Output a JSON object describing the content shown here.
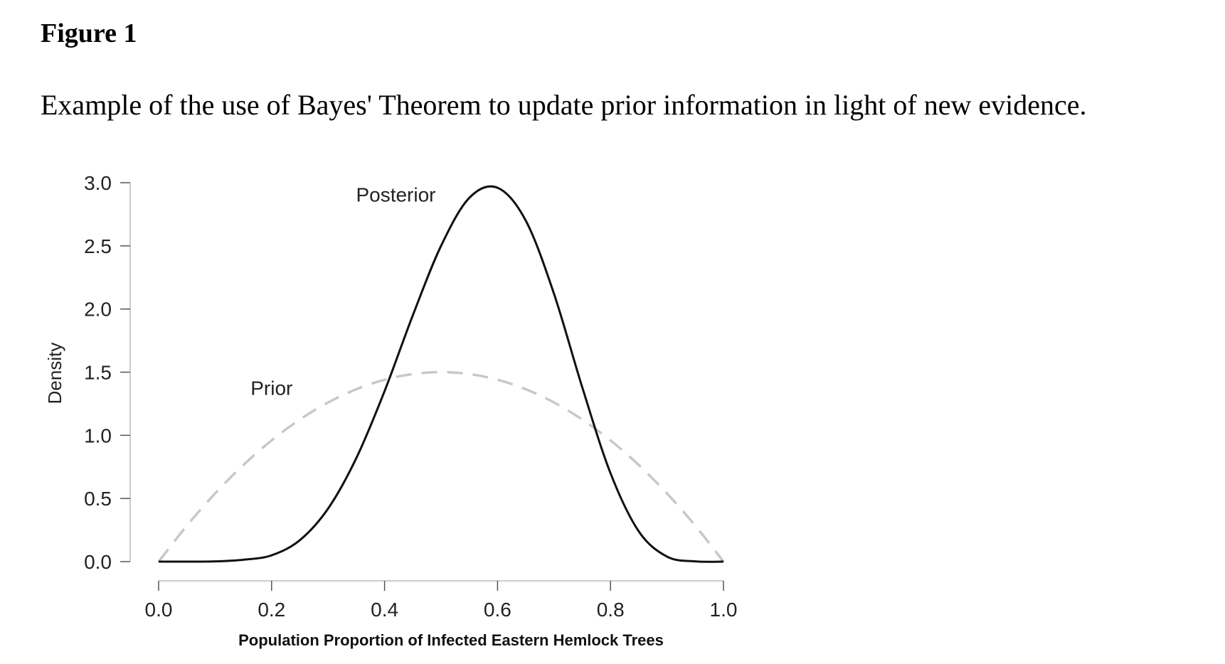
{
  "figure": {
    "label": "Figure 1",
    "caption": "Example of the use of Bayes' Theorem to update prior information in light of new evidence."
  },
  "chart_data": {
    "type": "line",
    "title": "",
    "xlabel": "Population Proportion of Infected Eastern Hemlock Trees",
    "ylabel": "Density",
    "xlim": [
      0.0,
      1.0
    ],
    "ylim": [
      0.0,
      3.0
    ],
    "x_ticks": [
      "0.0",
      "0.2",
      "0.4",
      "0.6",
      "0.8",
      "1.0"
    ],
    "y_ticks": [
      "0.0",
      "0.5",
      "1.0",
      "1.5",
      "2.0",
      "2.5",
      "3.0"
    ],
    "grid": false,
    "series": [
      {
        "name": "Prior",
        "style": "dashed",
        "color": "#c8c8c8",
        "x": [
          0.0,
          0.05,
          0.1,
          0.15,
          0.2,
          0.25,
          0.3,
          0.35,
          0.4,
          0.45,
          0.5,
          0.55,
          0.6,
          0.65,
          0.7,
          0.75,
          0.8,
          0.85,
          0.9,
          0.95,
          1.0
        ],
        "y": [
          0.0,
          0.285,
          0.54,
          0.765,
          0.96,
          1.125,
          1.26,
          1.365,
          1.44,
          1.485,
          1.5,
          1.485,
          1.44,
          1.365,
          1.26,
          1.125,
          0.96,
          0.765,
          0.54,
          0.285,
          0.0
        ]
      },
      {
        "name": "Posterior",
        "style": "solid",
        "color": "#111111",
        "x": [
          0.0,
          0.05,
          0.1,
          0.15,
          0.2,
          0.25,
          0.3,
          0.35,
          0.4,
          0.45,
          0.5,
          0.55,
          0.6,
          0.65,
          0.7,
          0.75,
          0.8,
          0.85,
          0.9,
          0.95,
          1.0
        ],
        "y": [
          0.0,
          0.0,
          0.002,
          0.015,
          0.05,
          0.17,
          0.42,
          0.82,
          1.35,
          1.95,
          2.5,
          2.88,
          2.96,
          2.7,
          2.12,
          1.38,
          0.7,
          0.24,
          0.04,
          0.002,
          0.0
        ]
      }
    ],
    "annotations": [
      {
        "text": "Posterior",
        "x": 0.42,
        "y": 2.85
      },
      {
        "text": "Prior",
        "x": 0.2,
        "y": 1.32
      }
    ]
  }
}
